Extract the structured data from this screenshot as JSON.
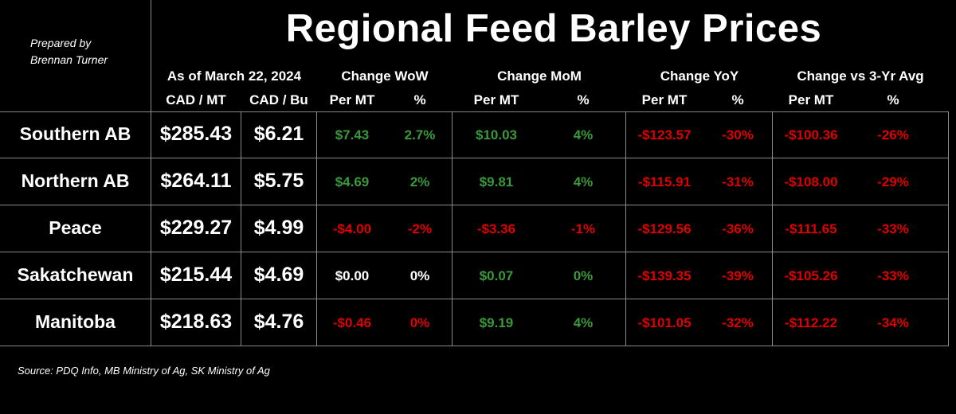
{
  "prepared_by": [
    "Prepared by",
    "Brennan Turner"
  ],
  "title": "Regional Feed Barley Prices",
  "header": {
    "as_of": "As of March 22, 2024",
    "cad_mt": "CAD / MT",
    "cad_bu": "CAD / Bu",
    "change_wow": "Change WoW",
    "change_mom": "Change MoM",
    "change_yoy": "Change YoY",
    "change_3yr": "Change vs 3-Yr Avg",
    "per_mt": "Per MT",
    "pct": "%"
  },
  "rows": [
    {
      "region": "Southern AB",
      "cad_mt": "$285.43",
      "cad_bu": "$6.21",
      "wow_mt": "$7.43",
      "wow_pct": "2.7%",
      "mom_mt": "$10.03",
      "mom_pct": "4%",
      "yoy_mt": "-$123.57",
      "yoy_pct": "-30%",
      "avg_mt": "-$100.36",
      "avg_pct": "-26%"
    },
    {
      "region": "Northern AB",
      "cad_mt": "$264.11",
      "cad_bu": "$5.75",
      "wow_mt": "$4.69",
      "wow_pct": "2%",
      "mom_mt": "$9.81",
      "mom_pct": "4%",
      "yoy_mt": "-$115.91",
      "yoy_pct": "-31%",
      "avg_mt": "-$108.00",
      "avg_pct": "-29%"
    },
    {
      "region": "Peace",
      "cad_mt": "$229.27",
      "cad_bu": "$4.99",
      "wow_mt": "-$4.00",
      "wow_pct": "-2%",
      "mom_mt": "-$3.36",
      "mom_pct": "-1%",
      "yoy_mt": "-$129.56",
      "yoy_pct": "-36%",
      "avg_mt": "-$111.65",
      "avg_pct": "-33%"
    },
    {
      "region": "Sakatchewan",
      "cad_mt": "$215.44",
      "cad_bu": "$4.69",
      "wow_mt": "$0.00",
      "wow_pct": "0%",
      "mom_mt": "$0.07",
      "mom_pct": "0%",
      "yoy_mt": "-$139.35",
      "yoy_pct": "-39%",
      "avg_mt": "-$105.26",
      "avg_pct": "-33%"
    },
    {
      "region": "Manitoba",
      "cad_mt": "$218.63",
      "cad_bu": "$4.76",
      "wow_mt": "-$0.46",
      "wow_pct": "0%",
      "mom_mt": "$9.19",
      "mom_pct": "4%",
      "yoy_mt": "-$101.05",
      "yoy_pct": "-32%",
      "avg_mt": "-$112.22",
      "avg_pct": "-34%"
    }
  ],
  "cell_colors": [
    {
      "wow_mt": "pos",
      "wow_pct": "pos",
      "mom_mt": "pos",
      "mom_pct": "pos",
      "yoy_mt": "neg",
      "yoy_pct": "neg",
      "avg_mt": "neg",
      "avg_pct": "neg"
    },
    {
      "wow_mt": "pos",
      "wow_pct": "pos",
      "mom_mt": "pos",
      "mom_pct": "pos",
      "yoy_mt": "neg",
      "yoy_pct": "neg",
      "avg_mt": "neg",
      "avg_pct": "neg"
    },
    {
      "wow_mt": "neg",
      "wow_pct": "neg",
      "mom_mt": "neg",
      "mom_pct": "neg",
      "yoy_mt": "neg",
      "yoy_pct": "neg",
      "avg_mt": "neg",
      "avg_pct": "neg"
    },
    {
      "wow_mt": "neu",
      "wow_pct": "neu",
      "mom_mt": "pos",
      "mom_pct": "pos",
      "yoy_mt": "neg",
      "yoy_pct": "neg",
      "avg_mt": "neg",
      "avg_pct": "neg"
    },
    {
      "wow_mt": "neg",
      "wow_pct": "neg",
      "mom_mt": "pos",
      "mom_pct": "pos",
      "yoy_mt": "neg",
      "yoy_pct": "neg",
      "avg_mt": "neg",
      "avg_pct": "neg"
    }
  ],
  "colors": {
    "positive": "#3a9a3a",
    "negative": "#e00000",
    "neutral": "#ffffff",
    "background": "#000000",
    "grid": "#8a8a8a"
  },
  "source": "Source: PDQ Info, MB Ministry of Ag, SK Ministry of Ag"
}
